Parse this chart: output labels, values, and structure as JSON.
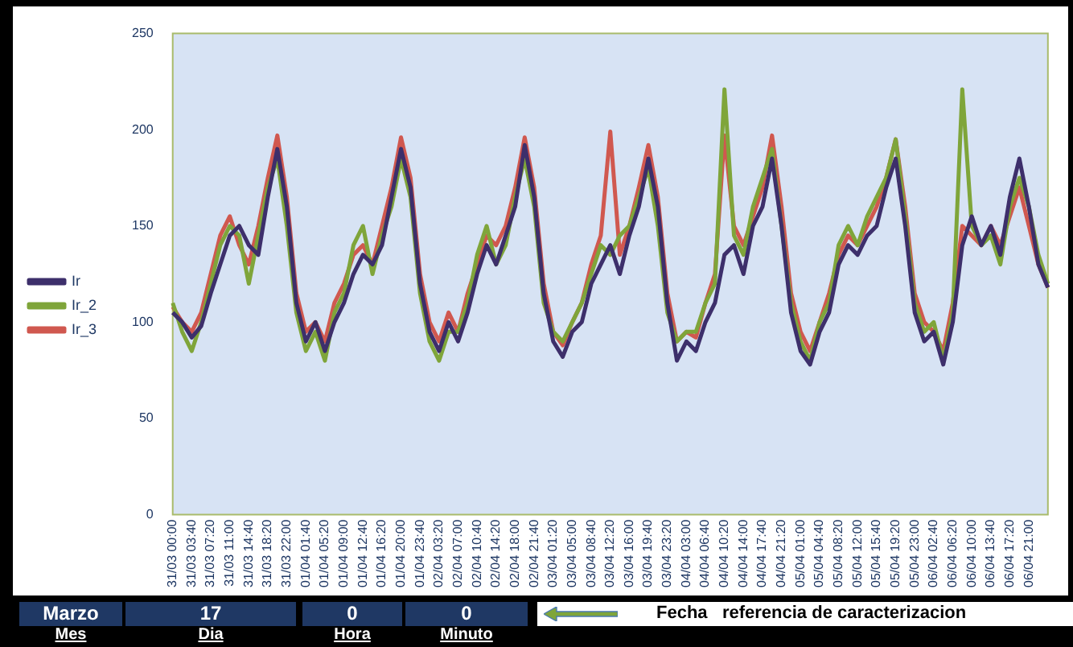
{
  "chart_data": {
    "type": "line",
    "categories": [
      "31/03 00:00",
      null,
      "31/03 03:40",
      null,
      "31/03 07:20",
      null,
      "31/03 11:00",
      null,
      "31/03 14:40",
      null,
      "31/03 18:20",
      null,
      "31/03 22:00",
      null,
      "01/04 01:40",
      null,
      "01/04 05:20",
      null,
      "01/04 09:00",
      null,
      "01/04 12:40",
      null,
      "01/04 16:20",
      null,
      "01/04 20:00",
      null,
      "01/04 23:40",
      null,
      "02/04 03:20",
      null,
      "02/04 07:00",
      null,
      "02/04 10:40",
      null,
      "02/04 14:20",
      null,
      "02/04 18:00",
      null,
      "02/04 21:40",
      null,
      "03/04 01:20",
      null,
      "03/04 05:00",
      null,
      "03/04 08:40",
      null,
      "03/04 12:20",
      null,
      "03/04 16:00",
      null,
      "03/04 19:40",
      null,
      "03/04 23:20",
      null,
      "04/04 03:00",
      null,
      "04/04 06:40",
      null,
      "04/04 10:20",
      null,
      "04/04 14:00",
      null,
      "04/04 17:40",
      null,
      "04/04 21:20",
      null,
      "05/04 01:00",
      null,
      "05/04 04:40",
      null,
      "05/04 08:20",
      null,
      "05/04 12:00",
      null,
      "05/04 15:40",
      null,
      "05/04 19:20",
      null,
      "05/04 23:00",
      null,
      "06/04 02:40",
      null,
      "06/04 06:20",
      null,
      "06/04 10:00",
      null,
      "06/04 13:40",
      null,
      "06/04 17:20",
      null,
      "06/04 21:00",
      null,
      null
    ],
    "series": [
      {
        "name": "Ir",
        "color": "#3d2f6b",
        "values": [
          105,
          100,
          92,
          98,
          115,
          130,
          145,
          150,
          140,
          135,
          165,
          190,
          160,
          110,
          90,
          100,
          85,
          100,
          110,
          125,
          135,
          130,
          140,
          165,
          190,
          170,
          120,
          95,
          85,
          100,
          90,
          105,
          125,
          140,
          130,
          145,
          160,
          192,
          165,
          115,
          90,
          82,
          95,
          100,
          120,
          130,
          140,
          125,
          145,
          160,
          185,
          160,
          110,
          80,
          90,
          85,
          100,
          110,
          135,
          140,
          125,
          150,
          160,
          185,
          150,
          105,
          85,
          78,
          95,
          105,
          130,
          140,
          135,
          145,
          150,
          170,
          185,
          150,
          105,
          90,
          95,
          78,
          100,
          140,
          155,
          140,
          150,
          135,
          165,
          185,
          160,
          130,
          118
        ]
      },
      {
        "name": "Ir_2",
        "color": "#7fa53a",
        "values": [
          110,
          95,
          85,
          100,
          120,
          140,
          150,
          145,
          120,
          145,
          170,
          185,
          150,
          105,
          85,
          95,
          80,
          105,
          115,
          140,
          150,
          125,
          145,
          160,
          185,
          165,
          115,
          90,
          80,
          95,
          95,
          110,
          135,
          150,
          130,
          140,
          165,
          185,
          160,
          110,
          95,
          90,
          100,
          110,
          125,
          140,
          135,
          145,
          150,
          165,
          180,
          150,
          105,
          90,
          95,
          95,
          110,
          120,
          221,
          145,
          135,
          160,
          175,
          190,
          150,
          110,
          90,
          80,
          100,
          110,
          140,
          150,
          140,
          155,
          165,
          175,
          195,
          155,
          110,
          95,
          100,
          80,
          105,
          221,
          150,
          140,
          145,
          130,
          160,
          175,
          160,
          135,
          120
        ]
      },
      {
        "name": "Ir_3",
        "color": "#d0584f",
        "values": [
          108,
          100,
          95,
          105,
          125,
          145,
          155,
          140,
          130,
          150,
          175,
          197,
          165,
          115,
          95,
          100,
          90,
          110,
          120,
          135,
          140,
          130,
          150,
          170,
          196,
          175,
          125,
          100,
          90,
          105,
          95,
          115,
          130,
          145,
          140,
          150,
          170,
          196,
          170,
          120,
          95,
          88,
          100,
          110,
          130,
          145,
          199,
          135,
          150,
          170,
          192,
          165,
          115,
          90,
          95,
          92,
          110,
          125,
          197,
          150,
          140,
          155,
          170,
          197,
          160,
          115,
          95,
          85,
          100,
          115,
          135,
          145,
          140,
          150,
          160,
          175,
          195,
          160,
          115,
          100,
          95,
          85,
          110,
          150,
          145,
          140,
          150,
          140,
          155,
          170,
          150,
          130,
          118
        ]
      }
    ],
    "ylim": [
      0,
      250
    ],
    "yticks": [
      0,
      50,
      100,
      150,
      200,
      250
    ],
    "grid": false,
    "legend": "left",
    "annotations": [
      "Marzo",
      "17",
      "0",
      "0",
      "Mes",
      "Dia",
      "Hora",
      "Minuto",
      "Fecha   referencia de caracterizacion"
    ]
  }
}
